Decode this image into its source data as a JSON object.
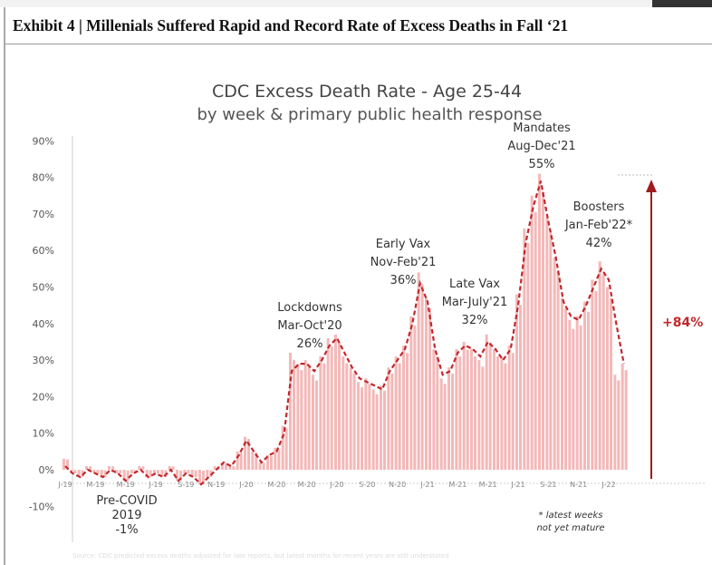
{
  "header": {
    "title": "Exhibit 4 | Millenials Suffered Rapid and Record Rate of Excess Deaths in Fall ‘21"
  },
  "chart_data": {
    "type": "bar+line",
    "title": "CDC Excess Death Rate - Age 25-44",
    "subtitle": "by week & primary public health response",
    "ylabel": "",
    "xlabel": "",
    "ylim": [
      -10,
      90
    ],
    "yticks": [
      "-10%",
      "0%",
      "10%",
      "20%",
      "30%",
      "40%",
      "50%",
      "60%",
      "70%",
      "80%",
      "90%"
    ],
    "xticks": [
      "J-19",
      "M-19",
      "M-19",
      "J-19",
      "S-19",
      "N-19",
      "J-20",
      "M-20",
      "M-20",
      "J-20",
      "S-20",
      "N-20",
      "J-21",
      "M-21",
      "M-21",
      "J-21",
      "S-21",
      "N-21",
      "J-22"
    ],
    "x_unit": "months since Jan 2019",
    "series": [
      {
        "name": "Weekly excess death rate (%)",
        "style": "bars",
        "x": [
          0,
          0.5,
          1,
          1.5,
          2,
          2.5,
          3,
          3.5,
          4,
          4.5,
          5,
          5.5,
          6,
          6.5,
          7,
          7.5,
          8,
          8.5,
          9,
          9.5,
          10,
          10.5,
          11,
          11.5,
          12,
          12.5,
          13,
          13.5,
          14,
          14.5,
          15,
          15.5,
          16,
          16.5,
          17,
          17.5,
          18,
          18.5,
          19,
          19.5,
          20,
          20.5,
          21,
          21.5,
          22,
          22.5,
          23,
          23.5,
          24,
          24.5,
          25,
          25.5,
          26,
          26.5,
          27,
          27.5,
          28,
          28.5,
          29,
          29.5,
          30,
          30.5,
          31,
          31.5,
          32,
          32.5,
          33,
          33.5,
          34,
          34.5,
          35,
          35.5,
          36,
          36.5,
          37
        ],
        "values": [
          3,
          -1,
          -2,
          1,
          -1,
          -2,
          1,
          -1,
          -3,
          -1,
          1,
          -2,
          -1,
          -2,
          1,
          -3,
          -1,
          -2,
          -4,
          -2,
          1,
          2,
          1,
          5,
          9,
          5,
          2,
          4,
          6,
          12,
          32,
          29,
          30,
          26,
          31,
          36,
          37,
          31,
          28,
          24,
          25,
          22,
          23,
          28,
          31,
          34,
          42,
          54,
          47,
          33,
          25,
          28,
          33,
          35,
          33,
          30,
          37,
          33,
          31,
          34,
          48,
          66,
          75,
          81,
          69,
          58,
          47,
          41,
          42,
          46,
          52,
          57,
          50,
          26,
          29
        ]
      },
      {
        "name": "Trend",
        "style": "dashed-line",
        "x": [
          0,
          0.5,
          1,
          1.5,
          2,
          2.5,
          3,
          3.5,
          4,
          4.5,
          5,
          5.5,
          6,
          6.5,
          7,
          7.5,
          8,
          8.5,
          9,
          9.5,
          10,
          10.5,
          11,
          11.5,
          12,
          12.5,
          13,
          13.5,
          14,
          14.5,
          15,
          15.5,
          16,
          16.5,
          17,
          17.5,
          18,
          18.5,
          19,
          19.5,
          20,
          20.5,
          21,
          21.5,
          22,
          22.5,
          23,
          23.5,
          24,
          24.5,
          25,
          25.5,
          26,
          26.5,
          27,
          27.5,
          28,
          28.5,
          29,
          29.5,
          30,
          30.5,
          31,
          31.5,
          32,
          32.5,
          33,
          33.5,
          34,
          34.5,
          35,
          35.5,
          36,
          36.5,
          37
        ],
        "values": [
          1,
          -1,
          -2,
          0,
          -1,
          -2,
          0,
          -1,
          -3,
          -1,
          0,
          -2,
          -1,
          -2,
          0,
          -3,
          -1,
          -2,
          -4,
          -2,
          0,
          2,
          1,
          4,
          8,
          5,
          2,
          4,
          5,
          10,
          27,
          29,
          29,
          27,
          30,
          34,
          36,
          32,
          28,
          25,
          24,
          23,
          22,
          27,
          30,
          33,
          40,
          51,
          46,
          33,
          26,
          27,
          32,
          34,
          33,
          31,
          35,
          33,
          30,
          33,
          45,
          62,
          72,
          79,
          68,
          58,
          46,
          42,
          41,
          45,
          50,
          55,
          52,
          40,
          29
        ]
      }
    ],
    "annotations": [
      {
        "lines": [
          "Pre-COVID",
          "2019",
          "-1%"
        ]
      },
      {
        "lines": [
          "Lockdowns",
          "Mar-Oct'20",
          "26%"
        ]
      },
      {
        "lines": [
          "Early Vax",
          "Nov-Feb'21",
          "36%"
        ]
      },
      {
        "lines": [
          "Late Vax",
          "Mar-July'21",
          "32%"
        ]
      },
      {
        "lines": [
          "Mandates",
          "Aug-Dec'21",
          "55%"
        ]
      },
      {
        "lines": [
          "Boosters",
          "Jan-Feb'22*",
          "42%"
        ]
      },
      {
        "lines": [
          "* latest weeks",
          "not yet mature"
        ]
      }
    ],
    "change_label": "+84%",
    "colors": {
      "bars": "#f4b8b8",
      "line": "#c0282d",
      "arrow": "#a01c1c",
      "change": "#c0282d"
    },
    "grid": false,
    "footnote": "Source: CDC predicted excess deaths adjusted for late reports, but latest months for recent years are still understated"
  }
}
